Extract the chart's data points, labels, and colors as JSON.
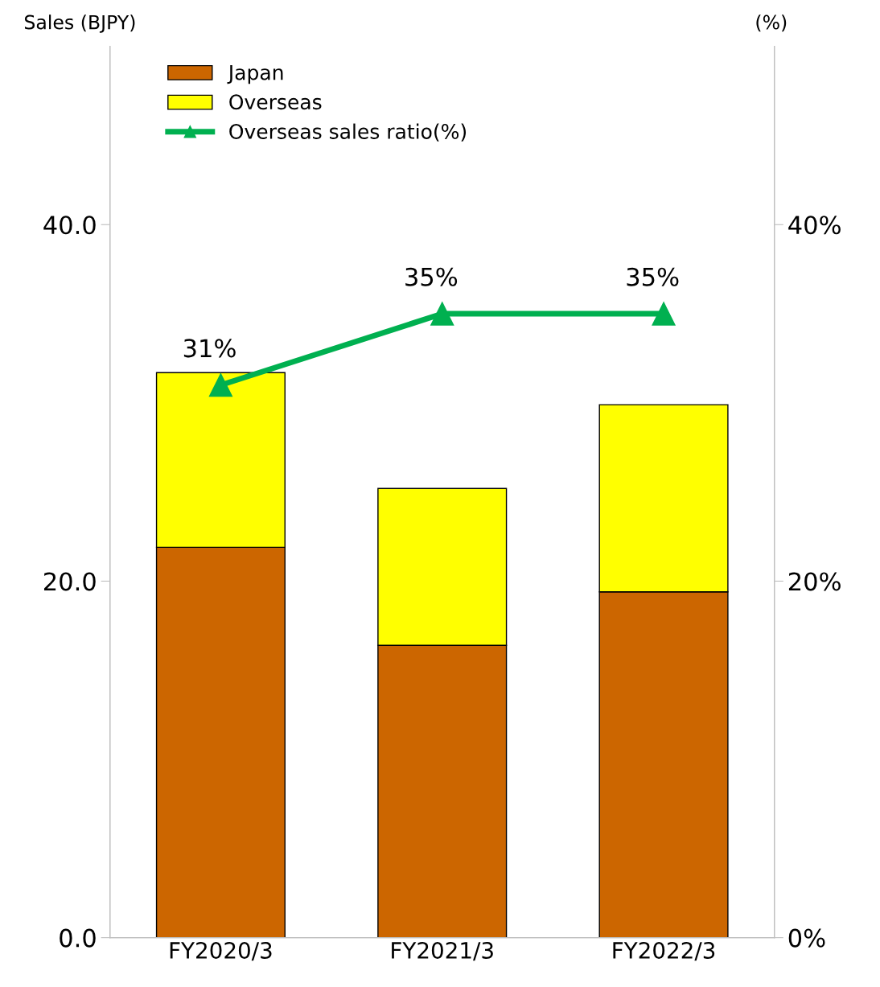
{
  "chart_data": {
    "type": "bar",
    "stacked": true,
    "ylabel": "Sales (BJPY)",
    "y2label": "(%)",
    "categories": [
      "FY2020/3",
      "FY2021/3",
      "FY2022/3"
    ],
    "series": [
      {
        "name": "Japan",
        "color": "#cc6600",
        "values": [
          21.9,
          16.4,
          19.4
        ]
      },
      {
        "name": "Overseas",
        "color": "#ffff00",
        "values": [
          9.8,
          8.8,
          10.5
        ]
      },
      {
        "name": "Overseas sales ratio(%)",
        "type": "line",
        "axis": "y2",
        "color": "#00b050",
        "marker": "triangle",
        "values": [
          31,
          35,
          35
        ],
        "value_labels": [
          "31%",
          "35%",
          "35%"
        ]
      }
    ],
    "ylim": [
      0,
      50
    ],
    "yticks": [
      {
        "value": 0,
        "label": "0.0"
      },
      {
        "value": 20,
        "label": "20.0"
      },
      {
        "value": 40,
        "label": "40.0"
      }
    ],
    "y2lim": [
      0,
      50
    ],
    "y2ticks": [
      {
        "value": 0,
        "label": "0%"
      },
      {
        "value": 20,
        "label": "20%"
      },
      {
        "value": 40,
        "label": "40%"
      }
    ],
    "grid": false,
    "legend": "top left"
  }
}
